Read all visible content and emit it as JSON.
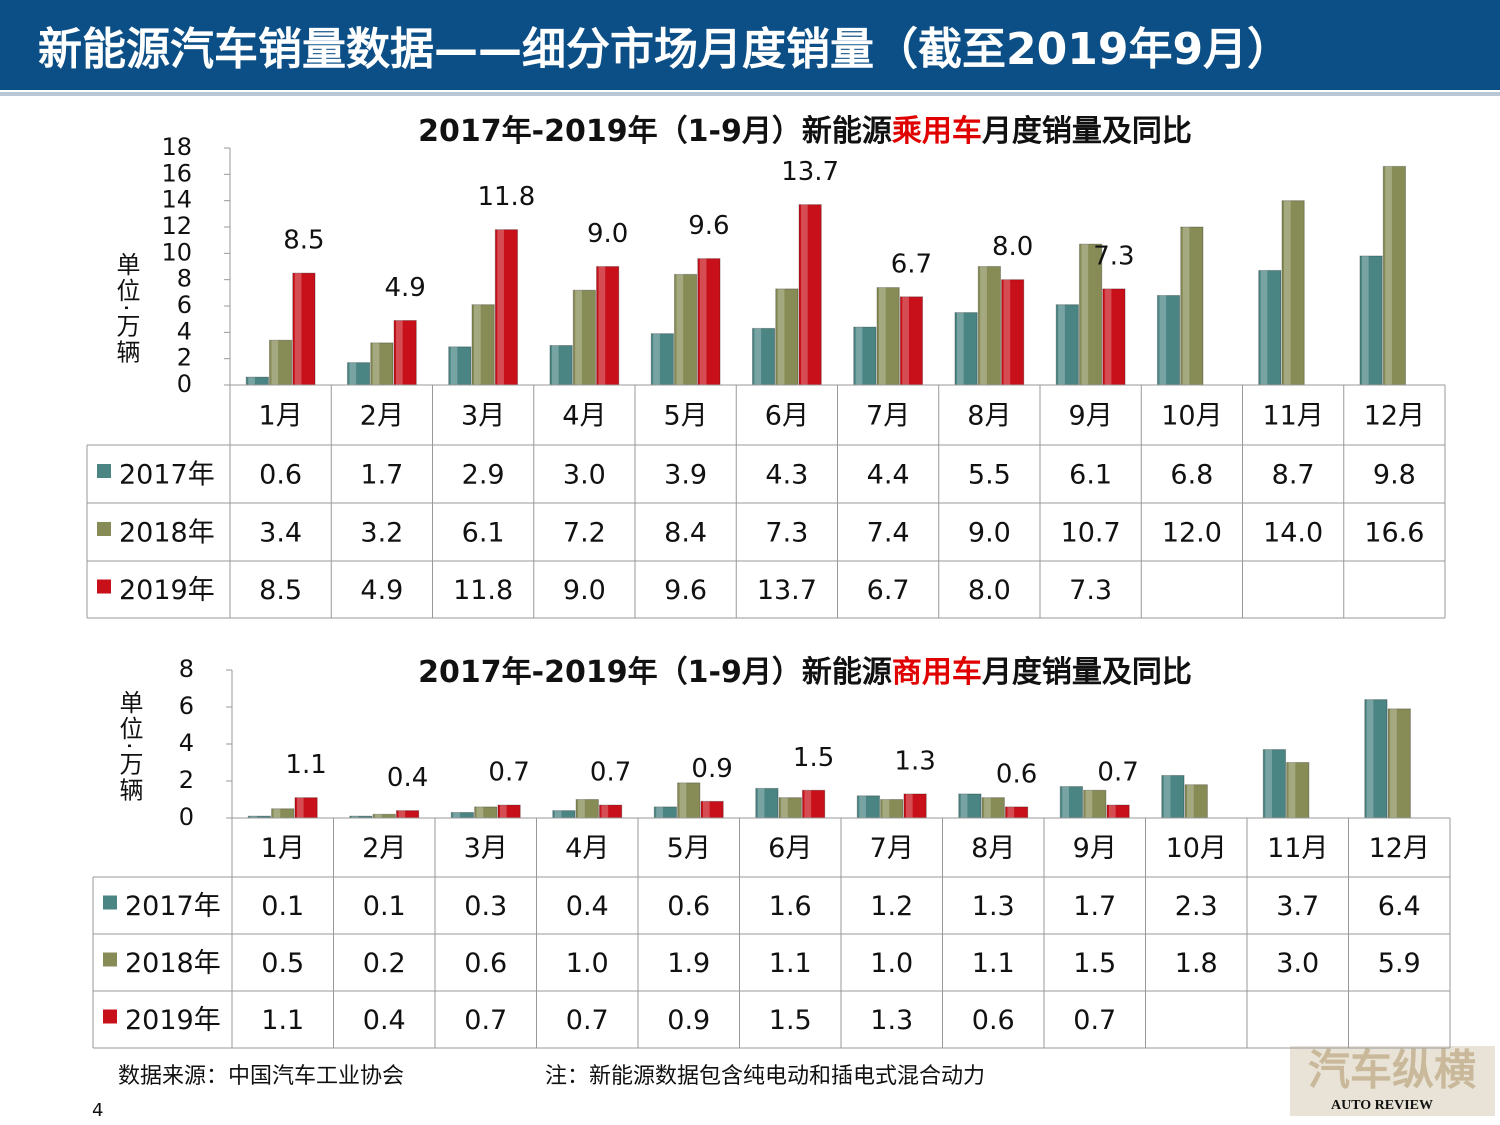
{
  "header": {
    "title": "新能源汽车销量数据——细分市场月度销量（截至2019年9月）"
  },
  "chart_data": [
    {
      "type": "bar",
      "title": [
        {
          "text": "2017年-2019年（1-9月）新能源",
          "color": "#111111"
        },
        {
          "text": "乘用车",
          "color": "#e00000"
        },
        {
          "text": "月度销量及同比",
          "color": "#111111"
        }
      ],
      "y_label": "单位·万辆",
      "categories": [
        "1月",
        "2月",
        "3月",
        "4月",
        "5月",
        "6月",
        "7月",
        "8月",
        "9月",
        "10月",
        "11月",
        "12月"
      ],
      "series": [
        {
          "name": "2017年",
          "color": "#4a8584",
          "values": [
            0.6,
            1.7,
            2.9,
            3.0,
            3.9,
            4.3,
            4.4,
            5.5,
            6.1,
            6.8,
            8.7,
            9.8
          ],
          "value_labels": [
            "0.6",
            "1.7",
            "2.9",
            "3.0",
            "3.9",
            "4.3",
            "4.4",
            "5.5",
            "6.1",
            "6.8",
            "8.7",
            "9.8"
          ]
        },
        {
          "name": "2018年",
          "color": "#878c56",
          "values": [
            3.4,
            3.2,
            6.1,
            7.2,
            8.4,
            7.3,
            7.4,
            9.0,
            10.7,
            12.0,
            14.0,
            16.6
          ],
          "value_labels": [
            "3.4",
            "3.2",
            "6.1",
            "7.2",
            "8.4",
            "7.3",
            "7.4",
            "9.0",
            "10.7",
            "12.0",
            "14.0",
            "16.6"
          ]
        },
        {
          "name": "2019年",
          "color": "#c8101a",
          "values": [
            8.5,
            4.9,
            11.8,
            9.0,
            9.6,
            13.7,
            6.7,
            8.0,
            7.3,
            null,
            null,
            null
          ],
          "value_labels": [
            "8.5",
            "4.9",
            "11.8",
            "9.0",
            "9.6",
            "13.7",
            "6.7",
            "8.0",
            "7.3",
            null,
            null,
            null
          ]
        }
      ],
      "ylim": [
        0,
        18
      ],
      "yticks": [
        0,
        2,
        4,
        6,
        8,
        10,
        12,
        14,
        16,
        18
      ]
    },
    {
      "type": "bar",
      "title": [
        {
          "text": "2017年-2019年（1-9月）新能源",
          "color": "#111111"
        },
        {
          "text": "商用车",
          "color": "#e00000"
        },
        {
          "text": "月度销量及同比",
          "color": "#111111"
        }
      ],
      "y_label": "单位·万辆",
      "categories": [
        "1月",
        "2月",
        "3月",
        "4月",
        "5月",
        "6月",
        "7月",
        "8月",
        "9月",
        "10月",
        "11月",
        "12月"
      ],
      "series": [
        {
          "name": "2017年",
          "color": "#4a8584",
          "values": [
            0.1,
            0.1,
            0.3,
            0.4,
            0.6,
            1.6,
            1.2,
            1.3,
            1.7,
            2.3,
            3.7,
            6.4
          ],
          "value_labels": [
            "0.1",
            "0.1",
            "0.3",
            "0.4",
            "0.6",
            "1.6",
            "1.2",
            "1.3",
            "1.7",
            "2.3",
            "3.7",
            "6.4"
          ]
        },
        {
          "name": "2018年",
          "color": "#878c56",
          "values": [
            0.5,
            0.2,
            0.6,
            1.0,
            1.9,
            1.1,
            1.0,
            1.1,
            1.5,
            1.8,
            3.0,
            5.9
          ],
          "value_labels": [
            "0.5",
            "0.2",
            "0.6",
            "1.0",
            "1.9",
            "1.1",
            "1.0",
            "1.1",
            "1.5",
            "1.8",
            "3.0",
            "5.9"
          ]
        },
        {
          "name": "2019年",
          "color": "#c8101a",
          "values": [
            1.1,
            0.4,
            0.7,
            0.7,
            0.9,
            1.5,
            1.3,
            0.6,
            0.7,
            null,
            null,
            null
          ],
          "value_labels": [
            "1.1",
            "0.4",
            "0.7",
            "0.7",
            "0.9",
            "1.5",
            "1.3",
            "0.6",
            "0.7",
            null,
            null,
            null
          ]
        }
      ],
      "ylim": [
        0,
        8
      ],
      "yticks": [
        0,
        2,
        4,
        6,
        8
      ]
    }
  ],
  "footer": {
    "source": "数据来源：中国汽车工业协会",
    "note": "注：新能源数据包含纯电动和插电式混合动力",
    "page": "4"
  },
  "logo": {
    "name": "汽车纵横",
    "subtitle": "AUTO REVIEW"
  }
}
